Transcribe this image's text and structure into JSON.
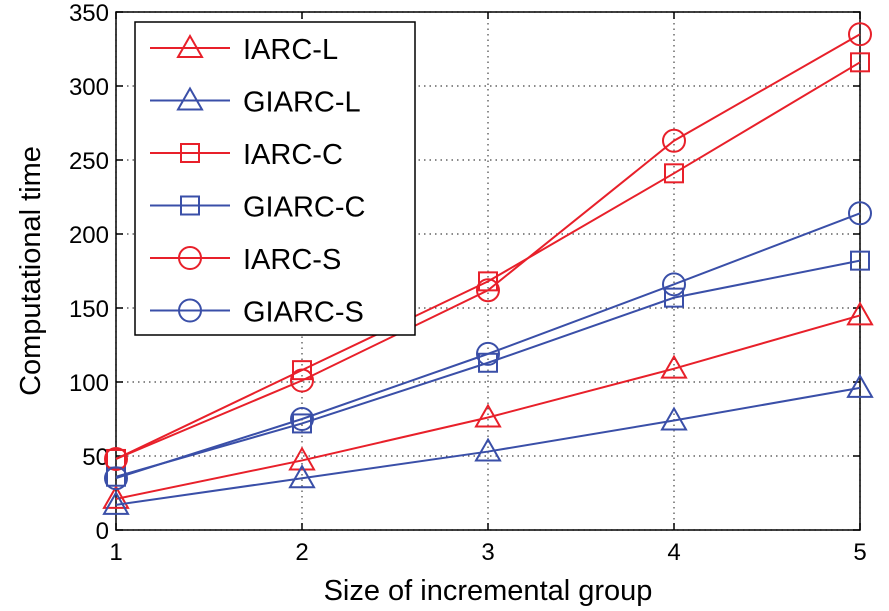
{
  "chart_data": {
    "type": "line",
    "title": "",
    "xlabel": "Size of incremental group",
    "ylabel": "Computational time",
    "xlim": [
      1,
      5
    ],
    "ylim": [
      0,
      350
    ],
    "xticks": [
      1,
      2,
      3,
      4,
      5
    ],
    "yticks": [
      0,
      50,
      100,
      150,
      200,
      250,
      300,
      350
    ],
    "grid": true,
    "legend_position": "top-left",
    "x": [
      1,
      2,
      3,
      4,
      5
    ],
    "series": [
      {
        "name": "IARC-L",
        "color": "#e8202a",
        "marker": "triangle",
        "values": [
          21,
          47,
          76,
          109,
          145
        ]
      },
      {
        "name": "GIARC-L",
        "color": "#3a4fa8",
        "marker": "triangle",
        "values": [
          17,
          35,
          53,
          74,
          96
        ]
      },
      {
        "name": "IARC-C",
        "color": "#e8202a",
        "marker": "square",
        "values": [
          48,
          108,
          168,
          241,
          316
        ]
      },
      {
        "name": "GIARC-C",
        "color": "#3a4fa8",
        "marker": "square",
        "values": [
          36,
          72,
          113,
          157,
          182
        ]
      },
      {
        "name": "IARC-S",
        "color": "#e8202a",
        "marker": "circle",
        "values": [
          48,
          101,
          162,
          263,
          335
        ]
      },
      {
        "name": "GIARC-S",
        "color": "#3a4fa8",
        "marker": "circle",
        "values": [
          35,
          75,
          119,
          166,
          214
        ]
      }
    ]
  }
}
